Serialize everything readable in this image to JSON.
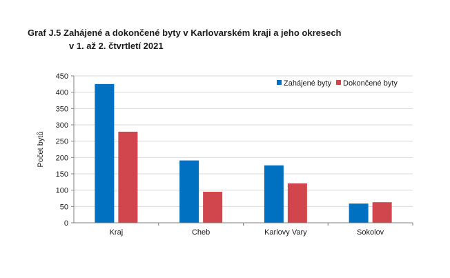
{
  "chart_data": {
    "type": "bar",
    "title_line1": "Graf J.5 Zahájené a dokončené byty v Karlovarském kraji a jeho okresech",
    "title_line2": "v 1. až 2. čtvrtletí 2021",
    "xlabel": "",
    "ylabel": "Počet bytů",
    "ylim": [
      0,
      450
    ],
    "yticks": [
      0,
      50,
      100,
      150,
      200,
      250,
      300,
      350,
      400,
      450
    ],
    "grid": true,
    "legend_position": "top-right",
    "categories": [
      "Kraj",
      "Cheb",
      "Karlovy Vary",
      "Sokolov"
    ],
    "series": [
      {
        "name": "Zahájené byty",
        "color": "#0070c0",
        "values": [
          425,
          191,
          176,
          59
        ]
      },
      {
        "name": "Dokončené byty",
        "color": "#d0464c",
        "values": [
          279,
          95,
          121,
          63
        ]
      }
    ]
  }
}
